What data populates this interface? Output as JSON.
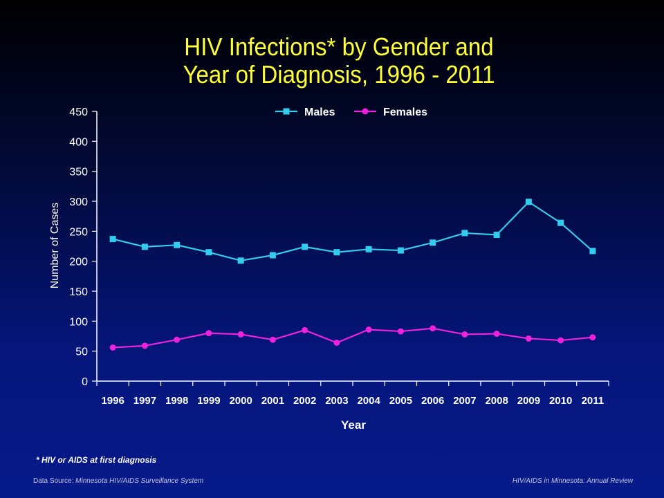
{
  "title": {
    "line1": "HIV Infections* by Gender and",
    "line2": "Year of Diagnosis, 1996 - 2011"
  },
  "footnote": "* HIV or AIDS at first diagnosis",
  "footer": {
    "source_label": "Data Source: ",
    "source_value": "Minnesota HIV/AIDS Surveillance System",
    "review": "HIV/AIDS in Minnesota: Annual Review"
  },
  "colors": {
    "title": "#ffff33",
    "males": "#33ccee",
    "females": "#ee22dd",
    "axis": "#ffffff"
  },
  "chart_data": {
    "type": "line",
    "title": "HIV Infections* by Gender and Year of Diagnosis, 1996 - 2011",
    "xlabel": "Year",
    "ylabel": "Number of Cases",
    "categories": [
      "1996",
      "1997",
      "1998",
      "1999",
      "2000",
      "2001",
      "2002",
      "2003",
      "2004",
      "2005",
      "2006",
      "2007",
      "2008",
      "2009",
      "2010",
      "2011"
    ],
    "y_ticks": [
      0,
      50,
      100,
      150,
      200,
      250,
      300,
      350,
      400,
      450
    ],
    "ylim": [
      0,
      450
    ],
    "grid": false,
    "legend_position": "top-center",
    "series": [
      {
        "name": "Males",
        "marker": "square",
        "color": "#33ccee",
        "values": [
          237,
          224,
          227,
          215,
          201,
          210,
          224,
          215,
          220,
          218,
          231,
          247,
          244,
          299,
          264,
          217
        ]
      },
      {
        "name": "Females",
        "marker": "circle",
        "color": "#ee22dd",
        "values": [
          56,
          59,
          69,
          80,
          78,
          69,
          85,
          64,
          86,
          83,
          88,
          78,
          79,
          71,
          68,
          73
        ]
      }
    ]
  }
}
